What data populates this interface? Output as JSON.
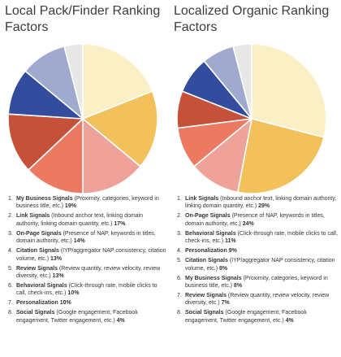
{
  "chart_data": [
    {
      "type": "pie",
      "title": "Local Pack/Finder Ranking Factors",
      "slices": [
        {
          "name": "My Business Signals",
          "detail": "(Proximity, categories, keyword in business title, etc.)",
          "value": 19,
          "label": "19%",
          "color": "#FBF0C5"
        },
        {
          "name": "Link Signals",
          "detail": "(Inbound anchor text, linking domain authority, linking domain quantity, etc.)",
          "value": 17,
          "label": "17%",
          "color": "#F2C15B"
        },
        {
          "name": "On-Page Signals",
          "detail": "(Presence of NAP, keywords in titles, domain authority, etc.)",
          "value": 14,
          "label": "14%",
          "color": "#EFA29A"
        },
        {
          "name": "Citation Signals",
          "detail": "(IYP/aggregator NAP consistency, citation volume, etc.)",
          "value": 13,
          "label": "13%",
          "color": "#EC7A62"
        },
        {
          "name": "Review Signals",
          "detail": "(Review quantity, review velocity, review diversity, etc.)",
          "value": 13,
          "label": "13%",
          "color": "#C6513A"
        },
        {
          "name": "Behavioral Signals",
          "detail": "(Click-through rate, mobile clicks to call, check-ins, etc.)",
          "value": 10,
          "label": "10%",
          "color": "#334C9E"
        },
        {
          "name": "Personalization",
          "detail": "",
          "value": 10,
          "label": "10%",
          "color": "#9FAACE"
        },
        {
          "name": "Social Signals",
          "detail": "(Google engagement, Facebook engagement, Twitter engagement, etc.)",
          "value": 4,
          "label": "4%",
          "color": "#E7E7E7"
        }
      ]
    },
    {
      "type": "pie",
      "title": "Localized Organic Ranking Factors",
      "slices": [
        {
          "name": "Link Signals",
          "detail": "(Inbound anchor text, linking domain authority, linking domain quantity, etc.)",
          "value": 29,
          "label": "29%",
          "color": "#FBF0C5"
        },
        {
          "name": "On-Page Signals",
          "detail": "(Presence of NAP, keywords in titles, domain authority, etc.)",
          "value": 24,
          "label": "24%",
          "color": "#F2C15B"
        },
        {
          "name": "Behavioral Signals",
          "detail": "(Click-through rate, mobile clicks to call, check-ins, etc.)",
          "value": 11,
          "label": "11%",
          "color": "#EFA29A"
        },
        {
          "name": "Personalization",
          "detail": "",
          "value": 9,
          "label": "9%",
          "color": "#EC7A62"
        },
        {
          "name": "Citation Signals",
          "detail": "(IYP/aggregator NAP consistency, citation volume, etc.)",
          "value": 8,
          "label": "8%",
          "color": "#C6513A"
        },
        {
          "name": "My Business Signals",
          "detail": "(Proximity, categories, keyword in business title, etc.)",
          "value": 8,
          "label": "8%",
          "color": "#334C9E"
        },
        {
          "name": "Review Signals",
          "detail": "(Review quantity, review velocity, review diversity, etc.)",
          "value": 7,
          "label": "7%",
          "color": "#9FAACE"
        },
        {
          "name": "Social Signals",
          "detail": "(Google engagement, Facebook engagement, Twitter engagement, etc.)",
          "value": 4,
          "label": "4%",
          "color": "#E7E7E7"
        }
      ]
    }
  ]
}
